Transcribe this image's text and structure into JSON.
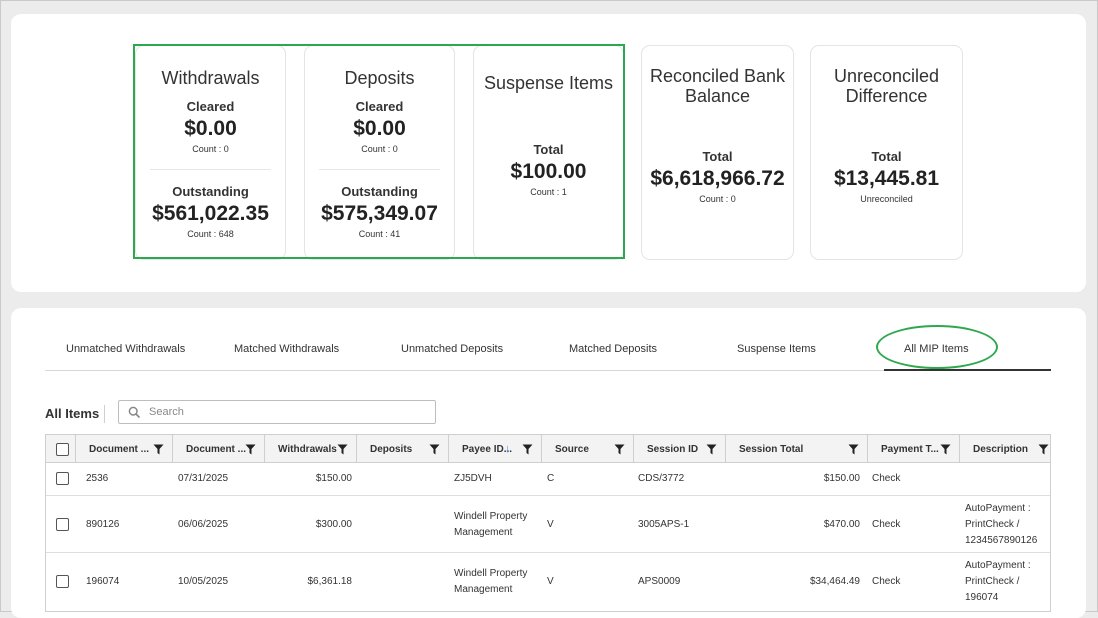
{
  "summary": {
    "withdrawals": {
      "title": "Withdrawals",
      "cleared_label": "Cleared",
      "cleared_amount": "$0.00",
      "cleared_count": "Count : 0",
      "outstanding_label": "Outstanding",
      "outstanding_amount": "$561,022.35",
      "outstanding_count": "Count : 648"
    },
    "deposits": {
      "title": "Deposits",
      "cleared_label": "Cleared",
      "cleared_amount": "$0.00",
      "cleared_count": "Count : 0",
      "outstanding_label": "Outstanding",
      "outstanding_amount": "$575,349.07",
      "outstanding_count": "Count : 41"
    },
    "suspense": {
      "title": "Suspense Items",
      "total_label": "Total",
      "total_amount": "$100.00",
      "count": "Count : 1"
    },
    "reconciled": {
      "title_line1": "Reconciled Bank",
      "title_line2": "Balance",
      "total_label": "Total",
      "total_amount": "$6,618,966.72",
      "count": "Count : 0"
    },
    "unreconciled": {
      "title_line1": "Unreconciled",
      "title_line2": "Difference",
      "total_label": "Total",
      "total_amount": "$13,445.81",
      "sub": "Unreconciled"
    }
  },
  "tabs": [
    {
      "label": "Unmatched Withdrawals"
    },
    {
      "label": "Matched Withdrawals"
    },
    {
      "label": "Unmatched Deposits"
    },
    {
      "label": "Matched Deposits"
    },
    {
      "label": "Suspense Items"
    },
    {
      "label": "All MIP Items",
      "active": true
    }
  ],
  "toolbar": {
    "heading": "All Items",
    "search_placeholder": "Search",
    "search_value": ""
  },
  "table": {
    "columns": [
      "Document ...",
      "Document ...",
      "Withdrawals",
      "Deposits",
      "Payee ID...",
      "Source",
      "Session ID",
      "Session Total",
      "Payment T...",
      "Description"
    ],
    "sort_indicator": "↓",
    "rows": [
      {
        "doc_num": "2536",
        "doc_date": "07/31/2025",
        "withdrawals": "$150.00",
        "deposits": "",
        "payee_line1": "ZJ5DVH",
        "payee_line2": "",
        "source": "C",
        "session_id": "CDS/3772",
        "session_total": "$150.00",
        "payment_type": "Check",
        "desc_line1": "",
        "desc_line2": "",
        "desc_line3": ""
      },
      {
        "doc_num": "890126",
        "doc_date": "06/06/2025",
        "withdrawals": "$300.00",
        "deposits": "",
        "payee_line1": "Windell Property",
        "payee_line2": "Management",
        "source": "V",
        "session_id": "3005APS-1",
        "session_total": "$470.00",
        "payment_type": "Check",
        "desc_line1": "AutoPayment :",
        "desc_line2": "PrintCheck /",
        "desc_line3": "1234567890126"
      },
      {
        "doc_num": "196074",
        "doc_date": "10/05/2025",
        "withdrawals": "$6,361.18",
        "deposits": "",
        "payee_line1": "Windell Property",
        "payee_line2": "Management",
        "source": "V",
        "session_id": "APS0009",
        "session_total": "$34,464.49",
        "payment_type": "Check",
        "desc_line1": "AutoPayment :",
        "desc_line2": "PrintCheck /",
        "desc_line3": "196074"
      }
    ]
  }
}
